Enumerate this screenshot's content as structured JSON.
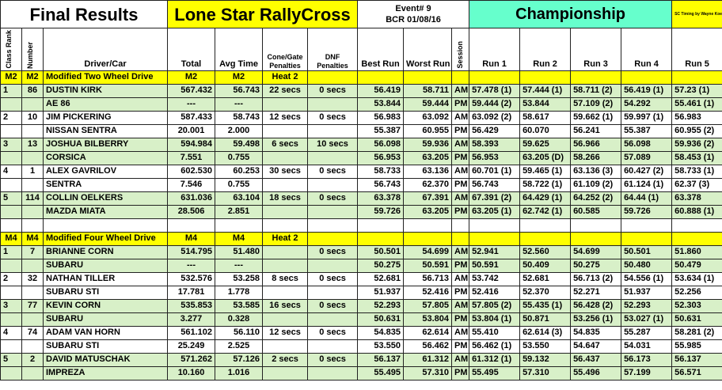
{
  "header": {
    "final_results": "Final Results",
    "event_name": "Lone Star RallyCross",
    "event_number": "Event# 9",
    "event_code": "BCR 01/08/16",
    "championship": "Championship",
    "timing_credit": "SC Timing by Wayne Koebel"
  },
  "columns": {
    "class_rank": "Class Rank",
    "number": "Number",
    "driver_car": "Driver/Car",
    "total": "Total",
    "avg_time": "Avg Time",
    "cone_gate": "Cone/Gate Penalties",
    "dnf": "DNF Penalties",
    "best_run": "Best Run",
    "worst_run": "Worst Run",
    "session": "Session",
    "run1": "Run 1",
    "run2": "Run 2",
    "run3": "Run 3",
    "run4": "Run 4",
    "run5": "Run 5"
  },
  "classes": [
    {
      "code": "M2",
      "code2": "M2",
      "name": "Modified Two Wheel Drive",
      "total_code": "M2",
      "avg_code": "M2",
      "heat": "Heat 2",
      "drivers": [
        {
          "rank": "1",
          "number": "86",
          "name": "DUSTIN KIRK",
          "total": "567.432",
          "avg": "56.743",
          "cone": "22 secs",
          "dnf": "0 secs",
          "best_am": "56.419",
          "worst_am": "58.711",
          "am": [
            "57.478 (1)",
            "57.444 (1)",
            "58.711 (2)",
            "56.419 (1)",
            "57.23 (1)"
          ],
          "car": "AE 86",
          "car_total": "---",
          "car_avg": "---",
          "best_pm": "53.844",
          "worst_pm": "59.444",
          "pm": [
            "59.444 (2)",
            "53.844",
            "57.109 (2)",
            "54.292",
            "55.461 (1)"
          ]
        },
        {
          "rank": "2",
          "number": "10",
          "name": "JIM PICKERING",
          "total": "587.433",
          "avg": "58.743",
          "cone": "12 secs",
          "dnf": "0 secs",
          "best_am": "56.983",
          "worst_am": "63.092",
          "am": [
            "63.092 (2)",
            "58.617",
            "59.662 (1)",
            "59.997 (1)",
            "56.983"
          ],
          "car": "NISSAN SENTRA",
          "car_total": "20.001",
          "car_avg": "2.000",
          "best_pm": "55.387",
          "worst_pm": "60.955",
          "pm": [
            "56.429",
            "60.070",
            "56.241",
            "55.387",
            "60.955 (2)"
          ]
        },
        {
          "rank": "3",
          "number": "13",
          "name": "JOSHUA BILBERRY",
          "total": "594.984",
          "avg": "59.498",
          "cone": "6 secs",
          "dnf": "10 secs",
          "best_am": "56.098",
          "worst_am": "59.936",
          "am": [
            "58.393",
            "59.625",
            "56.966",
            "56.098",
            "59.936 (2)"
          ],
          "car": "CORSICA",
          "car_total": "7.551",
          "car_avg": "0.755",
          "best_pm": "56.953",
          "worst_pm": "63.205",
          "pm": [
            "56.953",
            "63.205 (D)",
            "58.266",
            "57.089",
            "58.453 (1)"
          ]
        },
        {
          "rank": "4",
          "number": "1",
          "name": "ALEX GAVRILOV",
          "total": "602.530",
          "avg": "60.253",
          "cone": "30 secs",
          "dnf": "0 secs",
          "best_am": "58.733",
          "worst_am": "63.136",
          "am": [
            "60.701 (1)",
            "59.465 (1)",
            "63.136 (3)",
            "60.427 (2)",
            "58.733 (1)"
          ],
          "car": "SENTRA",
          "car_total": "7.546",
          "car_avg": "0.755",
          "best_pm": "56.743",
          "worst_pm": "62.370",
          "pm": [
            "56.743",
            "58.722 (1)",
            "61.109 (2)",
            "61.124 (1)",
            "62.37 (3)"
          ]
        },
        {
          "rank": "5",
          "number": "114",
          "name": "COLLIN OELKERS",
          "total": "631.036",
          "avg": "63.104",
          "cone": "18 secs",
          "dnf": "0 secs",
          "best_am": "63.378",
          "worst_am": "67.391",
          "am": [
            "67.391 (2)",
            "64.429 (1)",
            "64.252 (2)",
            "64.44 (1)",
            "63.378"
          ],
          "car": "MAZDA MIATA",
          "car_total": "28.506",
          "car_avg": "2.851",
          "best_pm": "59.726",
          "worst_pm": "63.205",
          "pm": [
            "63.205 (1)",
            "62.742 (1)",
            "60.585",
            "59.726",
            "60.888 (1)"
          ]
        }
      ]
    },
    {
      "code": "M4",
      "code2": "M4",
      "name": "Modified Four Wheel Drive",
      "total_code": "M4",
      "avg_code": "M4",
      "heat": "Heat 2",
      "drivers": [
        {
          "rank": "1",
          "number": "7",
          "name": "BRIANNE CORN",
          "total": "514.795",
          "avg": "51.480",
          "cone": "",
          "dnf": "0 secs",
          "best_am": "50.501",
          "worst_am": "54.699",
          "am": [
            "52.941",
            "52.560",
            "54.699",
            "50.501",
            "51.860"
          ],
          "car": "SUBARU",
          "car_total": "---",
          "car_avg": "---",
          "best_pm": "50.275",
          "worst_pm": "50.591",
          "pm": [
            "50.591",
            "50.409",
            "50.275",
            "50.480",
            "50.479"
          ]
        },
        {
          "rank": "2",
          "number": "32",
          "name": "NATHAN TILLER",
          "total": "532.576",
          "avg": "53.258",
          "cone": "8 secs",
          "dnf": "0 secs",
          "best_am": "52.681",
          "worst_am": "56.713",
          "am": [
            "53.742",
            "52.681",
            "56.713 (2)",
            "54.556 (1)",
            "53.634 (1)"
          ],
          "car": "SUBARU STI",
          "car_total": "17.781",
          "car_avg": "1.778",
          "best_pm": "51.937",
          "worst_pm": "52.416",
          "pm": [
            "52.416",
            "52.370",
            "52.271",
            "51.937",
            "52.256"
          ]
        },
        {
          "rank": "3",
          "number": "77",
          "name": "KEVIN CORN",
          "total": "535.853",
          "avg": "53.585",
          "cone": "16 secs",
          "dnf": "0 secs",
          "best_am": "52.293",
          "worst_am": "57.805",
          "am": [
            "57.805 (2)",
            "55.435 (1)",
            "56.428 (2)",
            "52.293",
            "52.303"
          ],
          "car": "SUBARU",
          "car_total": "3.277",
          "car_avg": "0.328",
          "best_pm": "50.631",
          "worst_pm": "53.804",
          "pm": [
            "53.804 (1)",
            "50.871",
            "53.256 (1)",
            "53.027 (1)",
            "50.631"
          ]
        },
        {
          "rank": "4",
          "number": "74",
          "name": "ADAM VAN HORN",
          "total": "561.102",
          "avg": "56.110",
          "cone": "12 secs",
          "dnf": "0 secs",
          "best_am": "54.835",
          "worst_am": "62.614",
          "am": [
            "55.410",
            "62.614 (3)",
            "54.835",
            "55.287",
            "58.281 (2)"
          ],
          "car": "SUBARU STI",
          "car_total": "25.249",
          "car_avg": "2.525",
          "best_pm": "53.550",
          "worst_pm": "56.462",
          "pm": [
            "56.462 (1)",
            "53.550",
            "54.647",
            "54.031",
            "55.985"
          ]
        },
        {
          "rank": "5",
          "number": "2",
          "name": "DAVID MATUSCHAK",
          "total": "571.262",
          "avg": "57.126",
          "cone": "2 secs",
          "dnf": "0 secs",
          "best_am": "56.137",
          "worst_am": "61.312",
          "am": [
            "61.312 (1)",
            "59.132",
            "56.437",
            "56.173",
            "56.137"
          ],
          "car": "IMPREZA",
          "car_total": "10.160",
          "car_avg": "1.016",
          "best_pm": "55.495",
          "worst_pm": "57.310",
          "pm": [
            "55.495",
            "57.310",
            "55.496",
            "57.199",
            "56.571"
          ]
        }
      ]
    }
  ],
  "session_labels": {
    "am": "AM",
    "pm": "PM"
  },
  "colors": {
    "class_band": "#ffff00",
    "winner_band": "#d8f0c8",
    "title_red": "#e00000",
    "championship": "#66ffcc"
  }
}
